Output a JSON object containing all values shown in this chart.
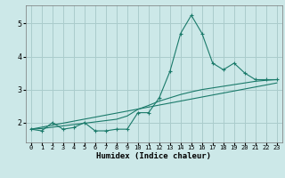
{
  "title": "",
  "xlabel": "Humidex (Indice chaleur)",
  "ylabel": "",
  "background_color": "#cce8e8",
  "grid_color": "#aacccc",
  "line_color": "#1a7a6a",
  "xlim": [
    -0.5,
    23.5
  ],
  "ylim": [
    1.4,
    5.55
  ],
  "yticks": [
    2,
    3,
    4,
    5
  ],
  "xticks": [
    0,
    1,
    2,
    3,
    4,
    5,
    6,
    7,
    8,
    9,
    10,
    11,
    12,
    13,
    14,
    15,
    16,
    17,
    18,
    19,
    20,
    21,
    22,
    23
  ],
  "series1_x": [
    0,
    1,
    2,
    3,
    4,
    5,
    6,
    7,
    8,
    9,
    10,
    11,
    12,
    13,
    14,
    15,
    16,
    17,
    18,
    19,
    20,
    21,
    22,
    23
  ],
  "series1_y": [
    1.8,
    1.75,
    2.0,
    1.8,
    1.85,
    2.0,
    1.75,
    1.75,
    1.8,
    1.8,
    2.3,
    2.3,
    2.75,
    3.55,
    4.7,
    5.25,
    4.7,
    3.8,
    3.6,
    3.8,
    3.5,
    3.3,
    3.3,
    3.3
  ],
  "series2_x": [
    0,
    1,
    2,
    3,
    4,
    5,
    6,
    7,
    8,
    9,
    10,
    11,
    12,
    13,
    14,
    15,
    16,
    17,
    18,
    19,
    20,
    21,
    22,
    23
  ],
  "series2_y": [
    1.8,
    1.82,
    1.86,
    1.9,
    1.94,
    1.98,
    2.02,
    2.06,
    2.1,
    2.2,
    2.4,
    2.52,
    2.65,
    2.75,
    2.85,
    2.93,
    3.0,
    3.05,
    3.1,
    3.15,
    3.2,
    3.25,
    3.28,
    3.3
  ],
  "series3_x": [
    0,
    23
  ],
  "series3_y": [
    1.8,
    3.2
  ]
}
